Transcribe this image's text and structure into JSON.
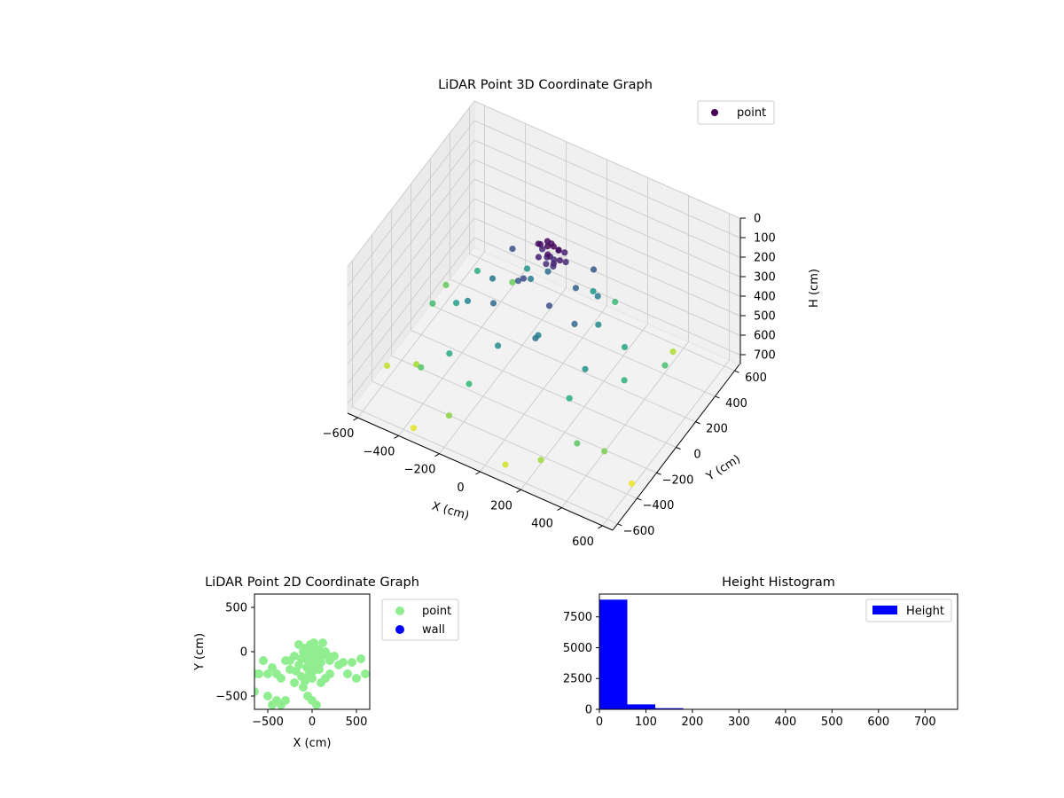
{
  "chart_data": [
    {
      "type": "scatter3d",
      "title": "LiDAR Point 3D Coordinate Graph",
      "xlabel": "X (cm)",
      "ylabel": "Y (cm)",
      "zlabel": "H (cm)",
      "xlim": [
        -650,
        650
      ],
      "ylim": [
        -650,
        650
      ],
      "zlim": [
        0,
        750
      ],
      "z_inverted": true,
      "x_ticks": [
        -600,
        -400,
        -200,
        0,
        200,
        400,
        600
      ],
      "y_ticks": [
        -600,
        -400,
        -200,
        0,
        200,
        400,
        600
      ],
      "z_ticks": [
        0,
        100,
        200,
        300,
        400,
        500,
        600,
        700
      ],
      "colormap": "viridis",
      "legend": {
        "position": "top-right",
        "entries": [
          {
            "label": "point",
            "color": "#440154"
          }
        ]
      },
      "grid": true,
      "series": [
        {
          "name": "point",
          "points": [
            [
              20,
              0,
              10
            ],
            [
              40,
              20,
              15
            ],
            [
              0,
              40,
              20
            ],
            [
              -20,
              10,
              25
            ],
            [
              60,
              30,
              30
            ],
            [
              30,
              -20,
              35
            ],
            [
              10,
              60,
              40
            ],
            [
              -40,
              30,
              45
            ],
            [
              50,
              50,
              50
            ],
            [
              80,
              0,
              55
            ],
            [
              -10,
              -30,
              60
            ],
            [
              70,
              70,
              65
            ],
            [
              25,
              15,
              70
            ],
            [
              55,
              -10,
              75
            ],
            [
              -30,
              50,
              80
            ],
            [
              90,
              40,
              85
            ],
            [
              5,
              25,
              90
            ],
            [
              35,
              35,
              95
            ],
            [
              15,
              -5,
              100
            ],
            [
              45,
              5,
              105
            ],
            [
              -60,
              -80,
              160
            ],
            [
              100,
              -150,
              180
            ],
            [
              -200,
              100,
              190
            ],
            [
              150,
              200,
              200
            ],
            [
              -100,
              -50,
              210
            ],
            [
              120,
              80,
              230
            ],
            [
              -150,
              -200,
              250
            ],
            [
              200,
              -100,
              260
            ],
            [
              -50,
              150,
              270
            ],
            [
              80,
              -250,
              290
            ],
            [
              -250,
              0,
              300
            ],
            [
              180,
              180,
              310
            ],
            [
              -120,
              120,
              320
            ],
            [
              60,
              -180,
              330
            ],
            [
              -300,
              -150,
              340
            ],
            [
              240,
              60,
              350
            ],
            [
              -80,
              -300,
              370
            ],
            [
              300,
              -200,
              380
            ],
            [
              -200,
              250,
              390
            ],
            [
              100,
              300,
              400
            ],
            [
              -380,
              -100,
              420
            ],
            [
              350,
              100,
              440
            ],
            [
              -280,
              -380,
              450
            ],
            [
              280,
              -320,
              460
            ],
            [
              -420,
              200,
              470
            ],
            [
              420,
              -50,
              480
            ],
            [
              -150,
              -450,
              500
            ],
            [
              150,
              420,
              510
            ],
            [
              -520,
              -50,
              520
            ],
            [
              500,
              200,
              530
            ],
            [
              -400,
              -420,
              550
            ],
            [
              380,
              -450,
              560
            ],
            [
              -550,
              150,
              570
            ],
            [
              -320,
              350,
              580
            ],
            [
              480,
              -380,
              600
            ],
            [
              -200,
              -550,
              620
            ],
            [
              250,
              -550,
              640
            ],
            [
              -480,
              -300,
              650
            ],
            [
              420,
              450,
              660
            ],
            [
              -600,
              -350,
              680
            ],
            [
              100,
              -600,
              700
            ],
            [
              -350,
              -600,
              720
            ],
            [
              600,
              -350,
              730
            ]
          ]
        }
      ]
    },
    {
      "type": "scatter",
      "title": "LiDAR Point 2D Coordinate Graph",
      "xlabel": "X (cm)",
      "ylabel": "Y (cm)",
      "xlim": [
        -650,
        650
      ],
      "ylim": [
        -650,
        650
      ],
      "x_ticks": [
        -500,
        0,
        500
      ],
      "y_ticks": [
        -500,
        0,
        500
      ],
      "legend": {
        "position": "outside-right",
        "entries": [
          {
            "label": "point",
            "color": "#90ee90"
          },
          {
            "label": "wall",
            "color": "#0000ff"
          }
        ]
      },
      "series": [
        {
          "name": "point",
          "color": "#90ee90",
          "points": [
            [
              0,
              -50
            ],
            [
              -50,
              -100
            ],
            [
              50,
              -80
            ],
            [
              -100,
              0
            ],
            [
              30,
              50
            ],
            [
              -80,
              40
            ],
            [
              100,
              -120
            ],
            [
              -20,
              80
            ],
            [
              -150,
              -150
            ],
            [
              80,
              -200
            ],
            [
              -30,
              -250
            ],
            [
              150,
              0
            ],
            [
              -200,
              -50
            ],
            [
              200,
              -100
            ],
            [
              0,
              -300
            ],
            [
              -120,
              -280
            ],
            [
              120,
              100
            ],
            [
              -250,
              -200
            ],
            [
              250,
              -50
            ],
            [
              -300,
              -100
            ],
            [
              300,
              -150
            ],
            [
              -350,
              -300
            ],
            [
              350,
              -120
            ],
            [
              -400,
              -250
            ],
            [
              -450,
              -180
            ],
            [
              450,
              -120
            ],
            [
              -500,
              -250
            ],
            [
              -550,
              -100
            ],
            [
              550,
              -80
            ],
            [
              -600,
              -250
            ],
            [
              600,
              -250
            ],
            [
              -650,
              -450
            ],
            [
              -400,
              -550
            ],
            [
              -450,
              -600
            ],
            [
              -350,
              -600
            ],
            [
              -300,
              -550
            ],
            [
              -50,
              -500
            ],
            [
              0,
              -550
            ],
            [
              50,
              -600
            ],
            [
              -500,
              -500
            ],
            [
              -650,
              -250
            ],
            [
              500,
              -300
            ],
            [
              400,
              -250
            ],
            [
              -200,
              -350
            ],
            [
              200,
              -250
            ],
            [
              -100,
              -400
            ],
            [
              100,
              -350
            ],
            [
              20,
              100
            ],
            [
              -60,
              -180
            ],
            [
              60,
              -20
            ],
            [
              -150,
              80
            ],
            [
              150,
              -300
            ],
            [
              -250,
              -100
            ],
            [
              -20,
              -150
            ],
            [
              -120,
              -80
            ],
            [
              80,
              20
            ],
            [
              -40,
              30
            ],
            [
              10,
              -220
            ],
            [
              -180,
              -220
            ],
            [
              180,
              -50
            ],
            [
              -80,
              -330
            ],
            [
              40,
              -130
            ],
            [
              -10,
              -80
            ],
            [
              70,
              -160
            ],
            [
              -70,
              10
            ],
            [
              30,
              -30
            ],
            [
              -30,
              -60
            ],
            [
              90,
              -70
            ]
          ]
        },
        {
          "name": "wall",
          "color": "#0000ff",
          "points": []
        }
      ]
    },
    {
      "type": "bar",
      "subtype": "histogram",
      "title": "Height Histogram",
      "xlim": [
        0,
        770
      ],
      "ylim": [
        0,
        9350
      ],
      "x_ticks": [
        0,
        100,
        200,
        300,
        400,
        500,
        600,
        700
      ],
      "y_ticks": [
        0,
        2500,
        5000,
        7500
      ],
      "legend": {
        "position": "top-right",
        "entries": [
          {
            "label": "Height",
            "color": "#0000ff"
          }
        ]
      },
      "bar_color": "#0000ff",
      "bin_edges": [
        0,
        60,
        120,
        180,
        240,
        300,
        360,
        420,
        480,
        540,
        600,
        660,
        720
      ],
      "series": [
        {
          "name": "Height",
          "values": [
            8900,
            400,
            90,
            30,
            20,
            15,
            12,
            10,
            8,
            6,
            5,
            4
          ]
        }
      ]
    }
  ]
}
